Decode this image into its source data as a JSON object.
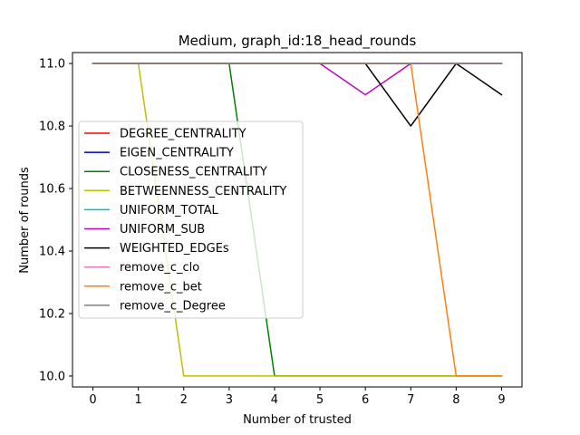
{
  "chart_data": {
    "type": "line",
    "title": "Medium, graph_id:18_head_rounds",
    "xlabel": "Number of trusted",
    "ylabel": "Number of rounds",
    "x": [
      0,
      1,
      2,
      3,
      4,
      5,
      6,
      7,
      8,
      9
    ],
    "xlim": [
      -0.45,
      9.45
    ],
    "ylim": [
      9.965,
      11.035
    ],
    "xticks": [
      0,
      1,
      2,
      3,
      4,
      5,
      6,
      7,
      8,
      9
    ],
    "yticks": [
      10.0,
      10.2,
      10.4,
      10.6,
      10.8,
      11.0
    ],
    "ytick_labels": [
      "10.0",
      "10.2",
      "10.4",
      "10.6",
      "10.8",
      "11.0"
    ],
    "grid": false,
    "legend_position": "center-left",
    "series": [
      {
        "name": "DEGREE_CENTRALITY",
        "color": "#ff0000",
        "values": [
          11,
          11,
          11,
          11,
          11,
          11,
          11,
          11,
          11,
          11
        ]
      },
      {
        "name": "EIGEN_CENTRALITY",
        "color": "#0000bf",
        "values": [
          11,
          11,
          11,
          11,
          11,
          11,
          11,
          11,
          11,
          11
        ]
      },
      {
        "name": "CLOSENESS_CENTRALITY",
        "color": "#008000",
        "values": [
          11,
          11,
          11,
          11,
          10,
          10,
          10,
          10,
          10,
          10
        ]
      },
      {
        "name": "BETWEENNESS_CENTRALITY",
        "color": "#bfbf00",
        "values": [
          11,
          11,
          10,
          10,
          10,
          10,
          10,
          10,
          10,
          10
        ]
      },
      {
        "name": "UNIFORM_TOTAL",
        "color": "#00bfbf",
        "values": [
          11,
          11,
          11,
          11,
          11,
          11,
          11,
          11,
          11,
          11
        ]
      },
      {
        "name": "UNIFORM_SUB",
        "color": "#bf00bf",
        "values": [
          11,
          11,
          11,
          11,
          11,
          11,
          10.9,
          11,
          11,
          11
        ]
      },
      {
        "name": "WEIGHTED_EDGEs",
        "color": "#000000",
        "values": [
          11,
          11,
          11,
          11,
          11,
          11,
          11,
          10.8,
          11,
          10.9
        ]
      },
      {
        "name": "remove_c_clo",
        "color": "#e377c2",
        "values": [
          11,
          11,
          11,
          11,
          11,
          11,
          11,
          11,
          11,
          11
        ]
      },
      {
        "name": "remove_c_bet",
        "color": "#ff7f0e",
        "values": [
          11,
          11,
          11,
          11,
          11,
          11,
          11,
          11,
          10,
          10
        ]
      },
      {
        "name": "remove_c_Degree",
        "color": "#7f7f7f",
        "values": [
          11,
          11,
          11,
          11,
          11,
          11,
          11,
          11,
          11,
          11
        ]
      }
    ]
  }
}
